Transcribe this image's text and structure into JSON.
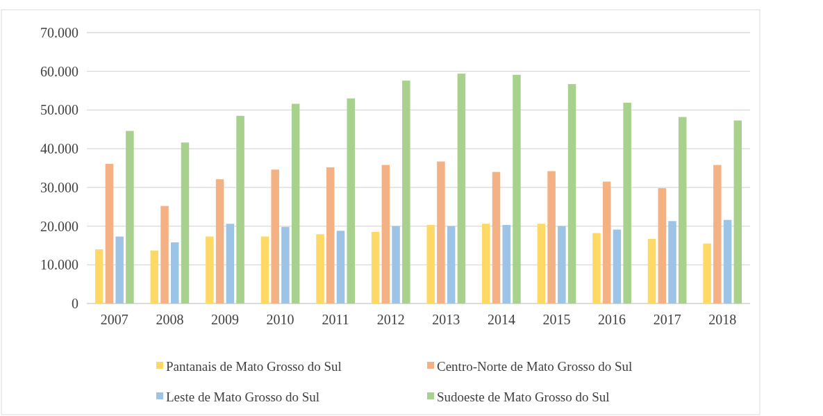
{
  "chart_data": {
    "type": "bar",
    "categories": [
      "2007",
      "2008",
      "2009",
      "2010",
      "2011",
      "2012",
      "2013",
      "2014",
      "2015",
      "2016",
      "2017",
      "2018"
    ],
    "series": [
      {
        "name": "Pantanais de Mato Grosso do Sul",
        "color": "#ffd966",
        "values": [
          14000,
          13700,
          17300,
          17300,
          17900,
          18500,
          20300,
          20600,
          20600,
          18200,
          16700,
          15500
        ]
      },
      {
        "name": "Centro-Norte de Mato Grosso do Sul",
        "color": "#f4b183",
        "values": [
          36100,
          25200,
          32100,
          34600,
          35200,
          35800,
          36700,
          34000,
          34200,
          31500,
          29800,
          35800
        ]
      },
      {
        "name": "Leste de Mato Grosso do Sul",
        "color": "#9dc3e6",
        "values": [
          17300,
          15800,
          20600,
          19800,
          18800,
          20000,
          20000,
          20300,
          20000,
          19100,
          21300,
          21600
        ]
      },
      {
        "name": "Sudoeste de Mato Grosso do Sul",
        "color": "#a9d18e",
        "values": [
          44600,
          41600,
          48500,
          51600,
          53000,
          57600,
          59400,
          59100,
          56700,
          51900,
          48200,
          47300
        ]
      }
    ],
    "ylim": [
      0,
      70000
    ],
    "yticks": [
      0,
      {
        "value": 10000,
        "label": "10.000"
      },
      {
        "value": 20000,
        "label": "20.000"
      },
      {
        "value": 30000,
        "label": "30.000"
      },
      {
        "value": 40000,
        "label": "40.000"
      },
      {
        "value": 50000,
        "label": "50.000"
      },
      {
        "value": 60000,
        "label": "60.000"
      },
      {
        "value": 70000,
        "label": "70.000"
      }
    ],
    "grid": "y",
    "legend": "bottom"
  }
}
